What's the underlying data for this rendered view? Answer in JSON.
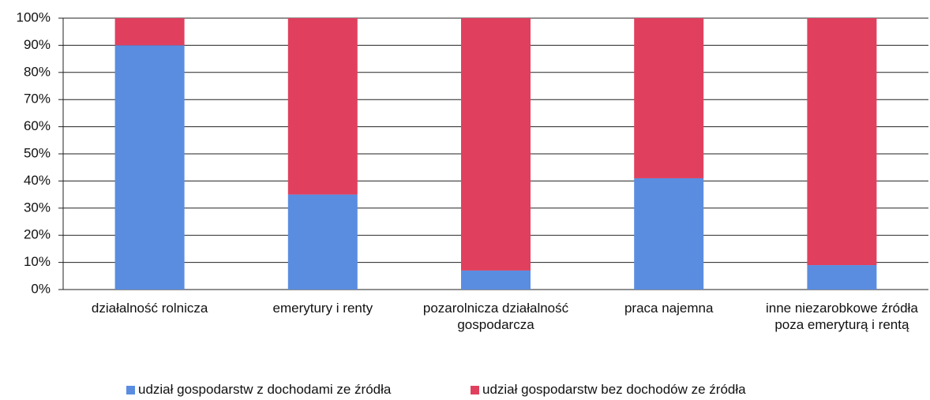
{
  "chart_data": {
    "type": "stacked_bar",
    "categories": [
      "działalność rolnicza",
      "emerytury i renty",
      "pozarolnicza działalność gospodarcza",
      "praca najemna",
      "inne niezarobkowe źródła poza emeryturą i rentą"
    ],
    "series": [
      {
        "name": "udział gospodarstw z dochodami ze źródła",
        "color": "#5a8de0",
        "values": [
          90,
          35,
          7,
          41,
          9
        ]
      },
      {
        "name": "udział gospodarstw bez dochodów ze źródła",
        "color": "#e0405e",
        "values": [
          10,
          65,
          93,
          59,
          91
        ]
      }
    ],
    "ylim": [
      0,
      100
    ],
    "yticks": [
      {
        "value": 0,
        "label": "0%"
      },
      {
        "value": 10,
        "label": "10%"
      },
      {
        "value": 20,
        "label": "20%"
      },
      {
        "value": 30,
        "label": "30%"
      },
      {
        "value": 40,
        "label": "40%"
      },
      {
        "value": 50,
        "label": "50%"
      },
      {
        "value": 60,
        "label": "60%"
      },
      {
        "value": 70,
        "label": "70%"
      },
      {
        "value": 80,
        "label": "80%"
      },
      {
        "value": 90,
        "label": "90%"
      },
      {
        "value": 100,
        "label": "100%"
      }
    ],
    "grid": true
  }
}
